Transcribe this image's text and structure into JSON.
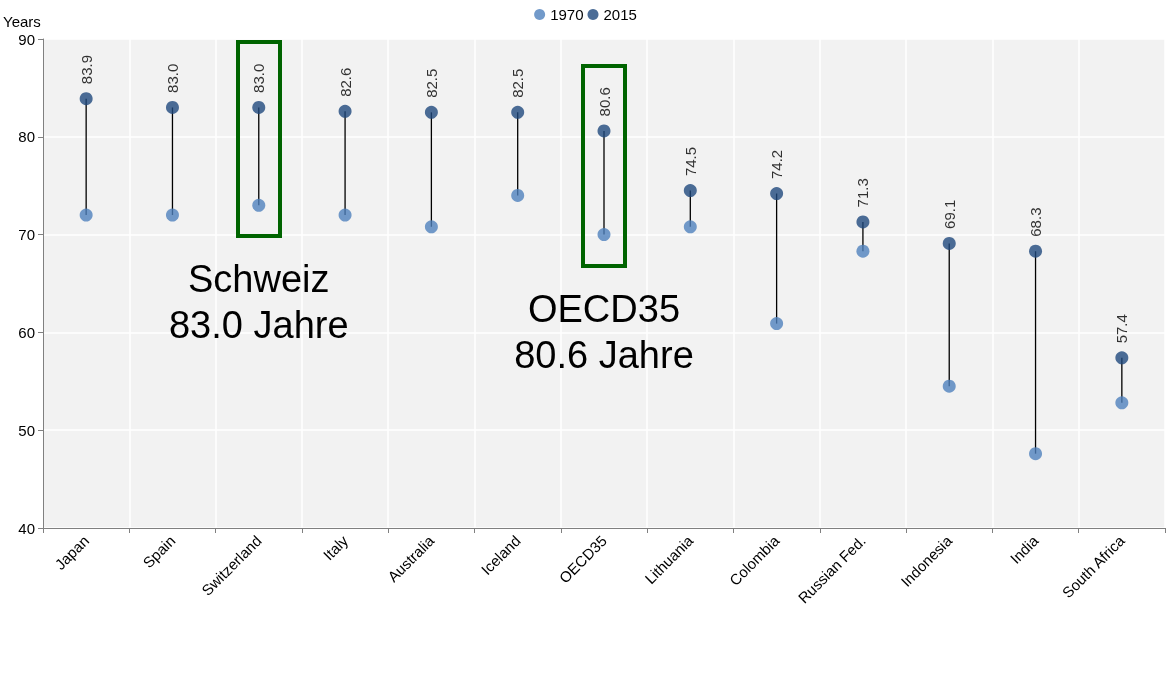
{
  "chart_data": {
    "type": "scatter",
    "ylabel": "Years",
    "categories": [
      "Japan",
      "Spain",
      "Switzerland",
      "Italy",
      "Australia",
      "Iceland",
      "OECD35",
      "Lithuania",
      "Colombia",
      "Russian Fed.",
      "Indonesia",
      "India",
      "South Africa"
    ],
    "series": [
      {
        "name": "1970",
        "color": "#4f81bd",
        "values": [
          72.0,
          72.0,
          73.0,
          72.0,
          70.8,
          74.0,
          70.0,
          70.8,
          60.9,
          68.3,
          54.5,
          47.6,
          52.8
        ]
      },
      {
        "name": "2015",
        "color": "#1f497d",
        "values": [
          83.9,
          83.0,
          83.0,
          82.6,
          82.5,
          82.5,
          80.6,
          74.5,
          74.2,
          71.3,
          69.1,
          68.3,
          57.4
        ],
        "value_labels": [
          "83.9",
          "83.0",
          "83.0",
          "82.6",
          "82.5",
          "82.5",
          "80.6",
          "74.5",
          "74.2",
          "71.3",
          "69.1",
          "68.3",
          "57.4"
        ]
      }
    ],
    "ylim": [
      40,
      90
    ],
    "yticks": [
      40,
      50,
      60,
      70,
      80,
      90
    ],
    "grid": true,
    "legend": "top",
    "marker": "circle",
    "annotations": [
      "Schweiz\n83.0 Jahre",
      "OECD35\n80.6 Jahre"
    ]
  }
}
